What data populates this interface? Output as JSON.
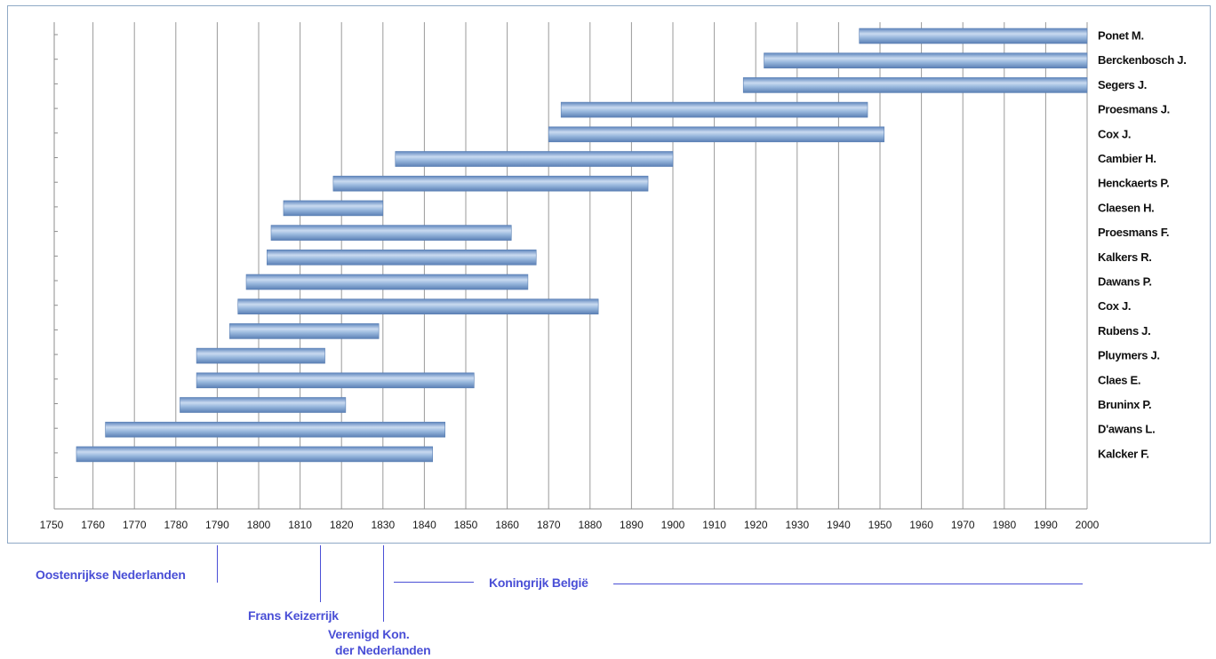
{
  "chart_data": {
    "type": "bar",
    "orientation": "horizontal-range",
    "title": "",
    "xlabel": "",
    "ylabel": "",
    "xlim": [
      1750,
      2000
    ],
    "x_ticks": [
      1750,
      1760,
      1770,
      1780,
      1790,
      1800,
      1810,
      1820,
      1830,
      1840,
      1850,
      1860,
      1870,
      1880,
      1890,
      1900,
      1910,
      1920,
      1930,
      1940,
      1950,
      1960,
      1970,
      1980,
      1990,
      2000
    ],
    "grid": true,
    "legend": "none",
    "bar_color": "#8aaed6",
    "series": [
      {
        "label": "Ponet M.",
        "start": 1945,
        "end": 2000
      },
      {
        "label": "Berckenbosch J.",
        "start": 1922,
        "end": 2000
      },
      {
        "label": "Segers J.",
        "start": 1917,
        "end": 2000
      },
      {
        "label": "Proesmans J.",
        "start": 1873,
        "end": 1947
      },
      {
        "label": "Cox J.",
        "start": 1870,
        "end": 1951
      },
      {
        "label": "Cambier H.",
        "start": 1833,
        "end": 1900
      },
      {
        "label": "Henckaerts P.",
        "start": 1818,
        "end": 1894
      },
      {
        "label": "Claesen H.",
        "start": 1806,
        "end": 1830
      },
      {
        "label": "Proesmans F.",
        "start": 1803,
        "end": 1861
      },
      {
        "label": "Kalkers R.",
        "start": 1802,
        "end": 1867
      },
      {
        "label": "Dawans P.",
        "start": 1797,
        "end": 1865
      },
      {
        "label": "Cox J.",
        "start": 1795,
        "end": 1882
      },
      {
        "label": "Rubens J.",
        "start": 1793,
        "end": 1829
      },
      {
        "label": "Pluymers J.",
        "start": 1785,
        "end": 1816
      },
      {
        "label": "Claes E.",
        "start": 1785,
        "end": 1852
      },
      {
        "label": "Bruninx P.",
        "start": 1781,
        "end": 1821
      },
      {
        "label": "D'awans L.",
        "start": 1763,
        "end": 1845
      },
      {
        "label": "Kalcker F.",
        "start": 1756,
        "end": 1842
      }
    ]
  },
  "annotations": {
    "oostenrijkse": "Oostenrijkse Nederlanden",
    "frans": "Frans Keizerrijk",
    "verenigd_line1": "Verenigd Kon.",
    "verenigd_line2": "der Nederlanden",
    "belgie": "Koningrijk België"
  },
  "colors": {
    "annotation": "#4a4fd6",
    "frame_border": "#8fa9c6",
    "grid": "#9a9a9a"
  }
}
